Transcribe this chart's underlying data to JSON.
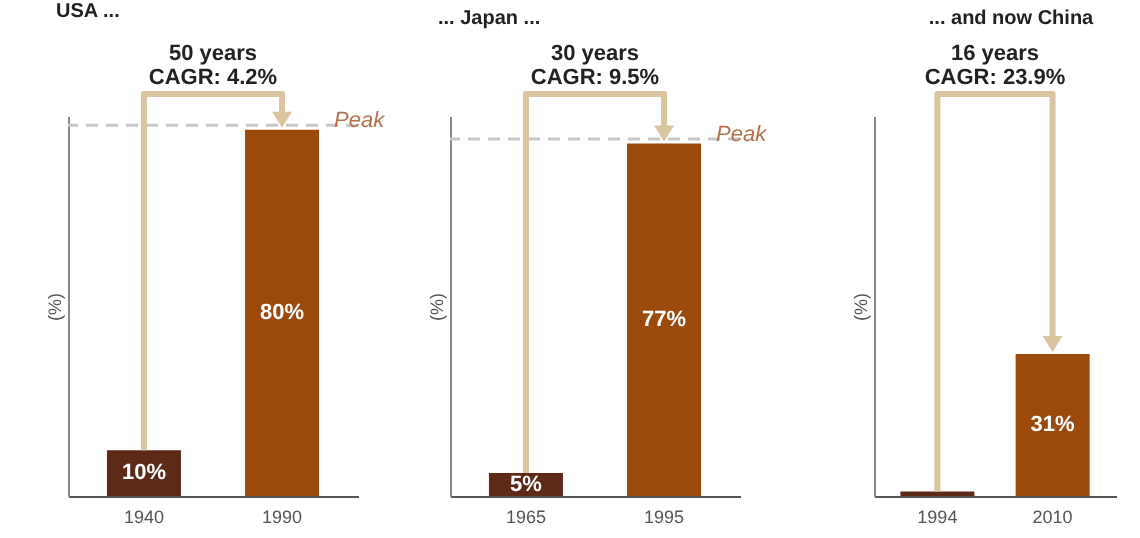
{
  "chart_data": [
    {
      "type": "bar",
      "title": "USA ...",
      "ylabel": "(%)",
      "categories": [
        "1940",
        "1990"
      ],
      "values": [
        10,
        80
      ],
      "colors": [
        "#5c2a17",
        "#9b4a0c"
      ],
      "value_labels": [
        "10%",
        "80%"
      ],
      "ylim": [
        0,
        83
      ],
      "tick_labels": "x",
      "ref_lines": [
        {
          "axis": "y",
          "value": 81,
          "label": "Peak",
          "color": "#c8c8c8",
          "line_style": "dashed"
        }
      ],
      "annotations": [
        "50 years",
        "CAGR: 4.2%"
      ]
    },
    {
      "type": "bar",
      "title": "... Japan ...",
      "ylabel": "(%)",
      "categories": [
        "1965",
        "1995"
      ],
      "values": [
        5,
        77
      ],
      "colors": [
        "#5c2a17",
        "#9b4a0c"
      ],
      "value_labels": [
        "5%",
        "77%"
      ],
      "ylim": [
        0,
        83
      ],
      "tick_labels": "x",
      "ref_lines": [
        {
          "axis": "y",
          "value": 78,
          "label": "Peak",
          "color": "#c8c8c8",
          "line_style": "dashed"
        }
      ],
      "annotations": [
        "30 years",
        "CAGR: 9.5%"
      ]
    },
    {
      "type": "bar",
      "title": "... and now China",
      "ylabel": "(%)",
      "categories": [
        "1994",
        "2010"
      ],
      "values": [
        1,
        31
      ],
      "colors": [
        "#5c2a17",
        "#9b4a0c"
      ],
      "value_labels": [
        null,
        "31%"
      ],
      "ylim": [
        0,
        83
      ],
      "tick_labels": "x",
      "annotations": [
        "16 years",
        "CAGR: 23.9%"
      ]
    }
  ]
}
